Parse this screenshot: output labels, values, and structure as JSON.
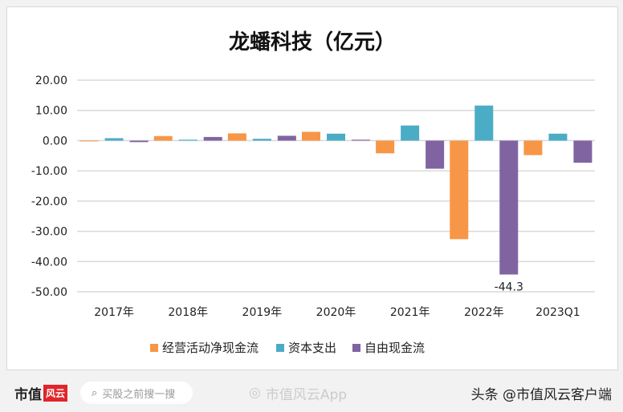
{
  "chart_data": {
    "type": "bar",
    "title": "龙蟠科技（亿元）",
    "categories": [
      "2017年",
      "2018年",
      "2019年",
      "2020年",
      "2021年",
      "2022年",
      "2023Q1"
    ],
    "series": [
      {
        "name": "经营活动净现金流",
        "color": "#f79646",
        "values": [
          0.0,
          1.5,
          2.4,
          2.9,
          -4.2,
          -32.6,
          -4.8
        ]
      },
      {
        "name": "资本支出",
        "color": "#4bacc6",
        "values": [
          0.8,
          0.3,
          0.6,
          2.3,
          5.0,
          11.6,
          2.3
        ]
      },
      {
        "name": "自由现金流",
        "color": "#8064a2",
        "values": [
          -0.5,
          1.2,
          1.6,
          0.3,
          -9.3,
          -44.3,
          -7.3
        ]
      }
    ],
    "ylim": [
      -50,
      20
    ],
    "yticks": [
      "20.00",
      "10.00",
      "0.00",
      "-10.00",
      "-20.00",
      "-30.00",
      "-40.00",
      "-50.00"
    ],
    "annotations": [
      "-44.3"
    ],
    "grid": true,
    "legend": "bottom"
  },
  "footer": {
    "logo": "市值",
    "logo_badge": "风云",
    "search": "买股之前搜一搜",
    "app": "市值风云App",
    "toutiao": "头条 @市值风云客户端"
  }
}
